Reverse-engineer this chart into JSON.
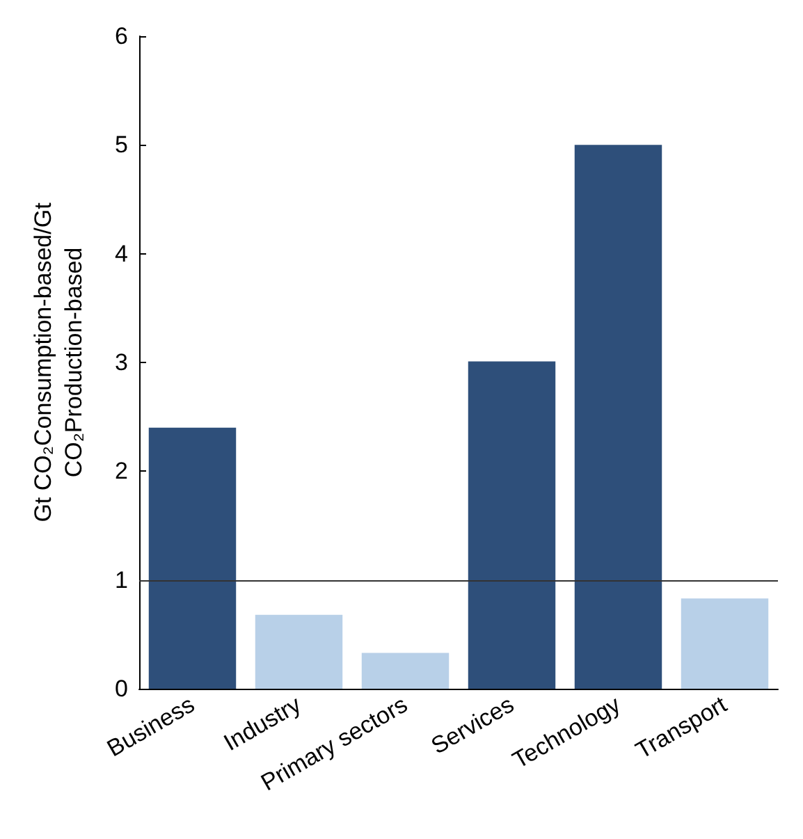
{
  "chart_data": {
    "type": "bar",
    "ylabel": "Gt CO₂Consumption-based/Gt\nCO₂Production-based",
    "categories": [
      "Business",
      "Industry",
      "Primary sectors",
      "Services",
      "Technology",
      "Transport"
    ],
    "values": [
      2.4,
      0.68,
      0.33,
      3.01,
      5.0,
      0.83
    ],
    "colors": [
      "#2e4f7a",
      "#b8d0e8",
      "#b8d0e8",
      "#2e4f7a",
      "#2e4f7a",
      "#b8d0e8"
    ],
    "ylim": [
      0,
      6
    ],
    "yticks": [
      0,
      1,
      2,
      3,
      4,
      5,
      6
    ],
    "grid": false,
    "ref_lines": [
      {
        "axis": "y",
        "value": 1,
        "color": "#333333"
      }
    ]
  }
}
